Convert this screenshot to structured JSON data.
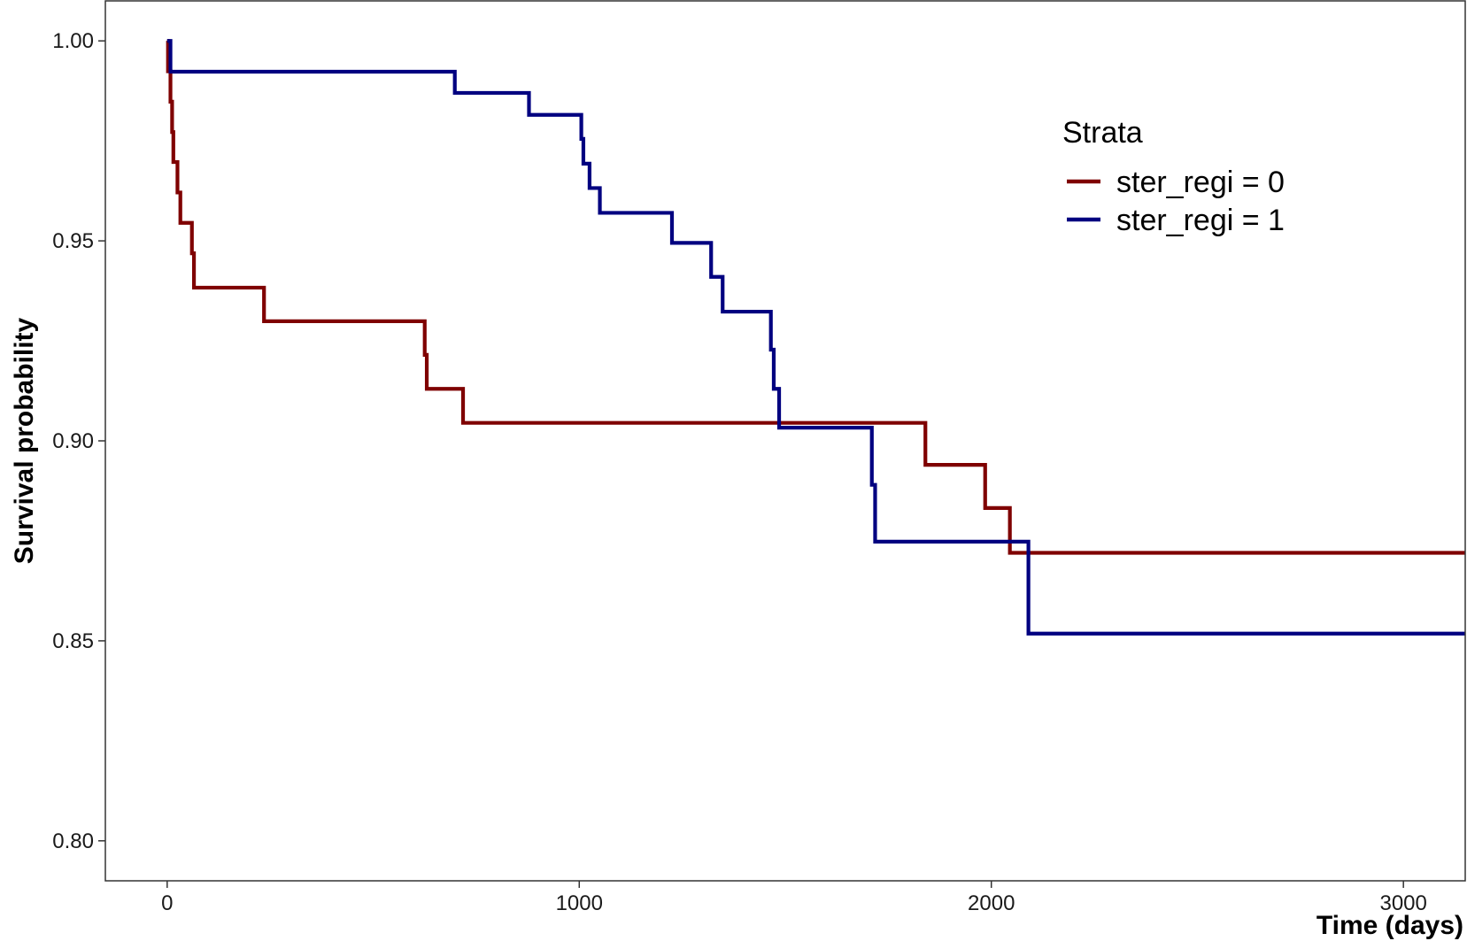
{
  "chart_data": {
    "type": "line",
    "subtype": "step",
    "title": "",
    "xlabel": "Time (days)",
    "ylabel": "Survival probability",
    "xlim": [
      -150,
      3150
    ],
    "ylim": [
      0.79,
      1.01
    ],
    "x_ticks": [
      0,
      1000,
      2000,
      3000
    ],
    "x_tick_labels": [
      "0",
      "1000",
      "2000",
      "3000"
    ],
    "y_ticks": [
      0.8,
      0.85,
      0.9,
      0.95,
      1.0
    ],
    "y_tick_labels": [
      "0.80",
      "0.85",
      "0.90",
      "0.95",
      "1.00"
    ],
    "grid": false,
    "legend": {
      "title": "Strata",
      "position": "top-right"
    },
    "series": [
      {
        "name": "ster_regi = 0",
        "color": "#7f0000",
        "points": [
          [
            0,
            1.0
          ],
          [
            2,
            0.9924
          ],
          [
            8,
            0.9848
          ],
          [
            12,
            0.9772
          ],
          [
            15,
            0.9697
          ],
          [
            25,
            0.9621
          ],
          [
            32,
            0.9545
          ],
          [
            60,
            0.9469
          ],
          [
            65,
            0.9383
          ],
          [
            235,
            0.9299
          ],
          [
            625,
            0.9215
          ],
          [
            630,
            0.913
          ],
          [
            718,
            0.9045
          ],
          [
            1840,
            0.894
          ],
          [
            1985,
            0.8832
          ],
          [
            2045,
            0.872
          ],
          [
            3150,
            0.872
          ]
        ]
      },
      {
        "name": "ster_regi = 1",
        "color": "#000080",
        "points": [
          [
            0,
            1.0
          ],
          [
            8,
            0.9923
          ],
          [
            698,
            0.987
          ],
          [
            878,
            0.9815
          ],
          [
            1005,
            0.9755
          ],
          [
            1010,
            0.9693
          ],
          [
            1025,
            0.9632
          ],
          [
            1050,
            0.957
          ],
          [
            1225,
            0.9495
          ],
          [
            1320,
            0.941
          ],
          [
            1348,
            0.9323
          ],
          [
            1465,
            0.9228
          ],
          [
            1472,
            0.913
          ],
          [
            1485,
            0.9033
          ],
          [
            1710,
            0.889
          ],
          [
            1718,
            0.8748
          ],
          [
            2090,
            0.8518
          ],
          [
            3150,
            0.8518
          ]
        ]
      }
    ]
  }
}
